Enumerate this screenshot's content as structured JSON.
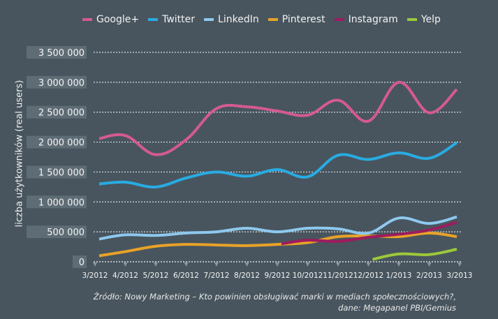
{
  "chart_data": {
    "type": "line",
    "title": "",
    "xlabel": "",
    "ylabel": "liczba użytkowników (real users)",
    "ylim": [
      0,
      3500000
    ],
    "yticks": [
      0,
      500000,
      1000000,
      1500000,
      2000000,
      2500000,
      3000000,
      3500000
    ],
    "ytick_labels": [
      "0",
      "500 000",
      "1 000 000",
      "1 500 000",
      "2 000 000",
      "2 500 000",
      "3 000 000",
      "3 500 000"
    ],
    "x": [
      "3/2012",
      "4/2012",
      "5/2012",
      "6/2012",
      "7/2012",
      "8/2012",
      "9/2012",
      "10/2012",
      "11/2012",
      "12/2012",
      "1/2013",
      "2/2013",
      "3/2013"
    ],
    "grid": true,
    "legend_position": "top",
    "series": [
      {
        "name": "Google+",
        "color": "#d45a93",
        "values": [
          2060000,
          2110000,
          1790000,
          2040000,
          2560000,
          2590000,
          2520000,
          2450000,
          2700000,
          2350000,
          3000000,
          2490000,
          2880000
        ]
      },
      {
        "name": "Twitter",
        "color": "#29abe2",
        "values": [
          1300000,
          1330000,
          1250000,
          1400000,
          1500000,
          1430000,
          1540000,
          1420000,
          1780000,
          1710000,
          1820000,
          1730000,
          1990000
        ]
      },
      {
        "name": "LinkedIn",
        "color": "#8ec8ee",
        "values": [
          380000,
          450000,
          440000,
          480000,
          500000,
          560000,
          500000,
          560000,
          550000,
          480000,
          730000,
          640000,
          750000
        ]
      },
      {
        "name": "Pinterest",
        "color": "#e8a228",
        "values": [
          100000,
          170000,
          260000,
          290000,
          280000,
          270000,
          290000,
          320000,
          420000,
          430000,
          420000,
          480000,
          420000
        ]
      },
      {
        "name": "Instagram",
        "color": "#9c1c5e",
        "values": [
          null,
          null,
          null,
          null,
          null,
          null,
          300000,
          360000,
          340000,
          410000,
          460000,
          530000,
          660000
        ]
      },
      {
        "name": "Yelp",
        "color": "#9cc93b",
        "values": [
          null,
          null,
          null,
          null,
          null,
          null,
          null,
          null,
          null,
          40000,
          130000,
          120000,
          210000
        ]
      }
    ]
  },
  "source": {
    "line1": "Źródło: Nowy Marketing – Kto powinien obsługiwać marki w mediach społecznościowych?,",
    "line2": "dane: Megapanel PBI/Gemius"
  }
}
